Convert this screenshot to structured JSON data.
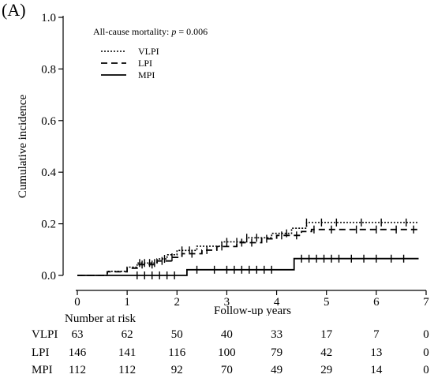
{
  "panel_label": "(A)",
  "chart_data": {
    "type": "line",
    "subtype": "step",
    "title": "",
    "annotation_prefix": "All-cause mortality: ",
    "annotation_p": "p",
    "annotation_suffix": " = 0.006",
    "xlabel": "Follow-up years",
    "ylabel": "Cumulative incidence",
    "xlim": [
      0,
      7
    ],
    "ylim": [
      0,
      1.0
    ],
    "x_ticks": [
      0,
      1,
      2,
      3,
      4,
      5,
      6,
      7
    ],
    "x_tick_labels": [
      "0",
      "1",
      "2",
      "3",
      "4",
      "5",
      "6",
      "7"
    ],
    "y_ticks": [
      0,
      0.2,
      0.4,
      0.6,
      0.8,
      1.0
    ],
    "y_tick_labels": [
      "0.0",
      "0.2",
      "0.4",
      "0.6",
      "0.8",
      "1.0"
    ],
    "legend": "top-left",
    "grid": false,
    "series": [
      {
        "name": "VLPI",
        "style": "dotted",
        "steps": [
          [
            0,
            0
          ],
          [
            0.6,
            0.016
          ],
          [
            1.0,
            0.032
          ],
          [
            1.2,
            0.048
          ],
          [
            1.6,
            0.064
          ],
          [
            1.8,
            0.08
          ],
          [
            2.0,
            0.097
          ],
          [
            2.4,
            0.113
          ],
          [
            2.9,
            0.13
          ],
          [
            3.4,
            0.146
          ],
          [
            3.9,
            0.163
          ],
          [
            4.3,
            0.183
          ],
          [
            4.6,
            0.205
          ],
          [
            6.85,
            0.205
          ]
        ],
        "censor": [
          1.25,
          1.35,
          1.45,
          1.55,
          1.75,
          2.1,
          2.25,
          3.0,
          3.2,
          3.4,
          3.6,
          4.2,
          4.6,
          4.9,
          5.2,
          5.7,
          6.1,
          6.6
        ]
      },
      {
        "name": "LPI",
        "style": "dashed",
        "steps": [
          [
            0,
            0
          ],
          [
            0.6,
            0.014
          ],
          [
            1.0,
            0.028
          ],
          [
            1.2,
            0.042
          ],
          [
            1.6,
            0.056
          ],
          [
            1.9,
            0.07
          ],
          [
            2.1,
            0.084
          ],
          [
            2.5,
            0.098
          ],
          [
            2.8,
            0.112
          ],
          [
            3.2,
            0.127
          ],
          [
            3.7,
            0.142
          ],
          [
            4.0,
            0.155
          ],
          [
            4.5,
            0.17
          ],
          [
            4.7,
            0.178
          ],
          [
            6.85,
            0.178
          ]
        ],
        "censor": [
          1.3,
          1.5,
          1.7,
          1.9,
          2.3,
          2.6,
          2.9,
          3.3,
          3.5,
          3.8,
          4.1,
          4.4,
          4.75,
          5.1,
          5.6,
          6.0,
          6.4,
          6.75
        ]
      },
      {
        "name": "MPI",
        "style": "solid",
        "steps": [
          [
            0,
            0
          ],
          [
            2.2,
            0.022
          ],
          [
            4.35,
            0.065
          ],
          [
            6.85,
            0.065
          ]
        ],
        "censor": [
          1.2,
          1.35,
          1.5,
          1.65,
          1.8,
          1.95,
          2.4,
          2.75,
          3.0,
          3.15,
          3.3,
          3.45,
          3.6,
          3.75,
          3.9,
          4.5,
          4.65,
          4.8,
          4.95,
          5.1,
          5.25,
          5.5,
          5.75,
          6.0,
          6.3,
          6.55
        ]
      }
    ]
  },
  "risk_table": {
    "title": "Number at risk",
    "times": [
      0,
      1,
      2,
      3,
      4,
      5,
      6,
      7
    ],
    "rows": [
      {
        "label": "VLPI",
        "values": [
          "63",
          "62",
          "50",
          "40",
          "33",
          "17",
          "7",
          "0"
        ]
      },
      {
        "label": "LPI",
        "values": [
          "146",
          "141",
          "116",
          "100",
          "79",
          "42",
          "13",
          "0"
        ]
      },
      {
        "label": "MPI",
        "values": [
          "112",
          "112",
          "92",
          "70",
          "49",
          "29",
          "14",
          "0"
        ]
      }
    ]
  }
}
